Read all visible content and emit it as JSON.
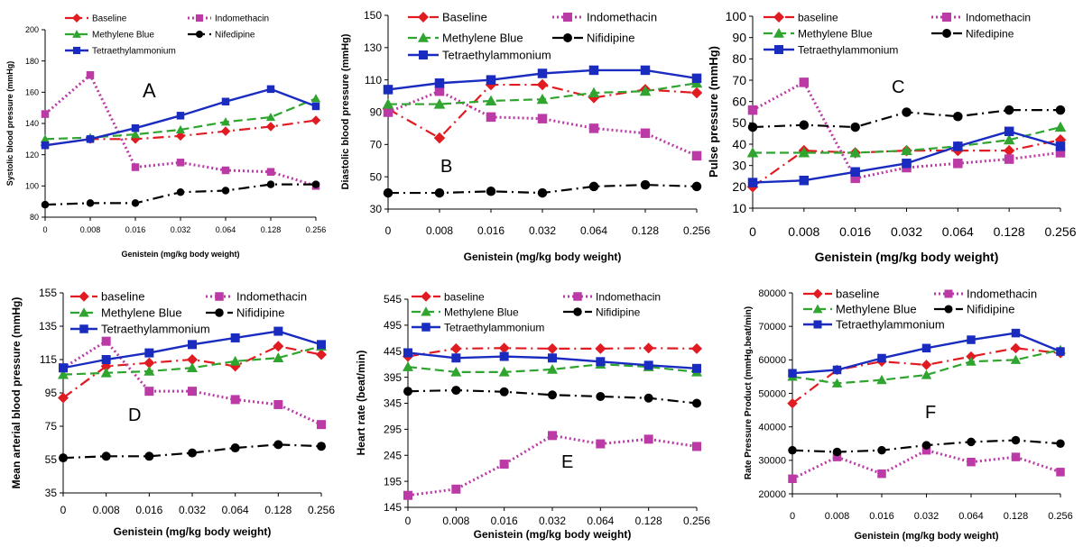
{
  "chart_data": [
    {
      "type": "line",
      "panel_letter": "A",
      "xlabel": "Genistein (mg/kg body weight)",
      "ylabel": "Systolic blood pressure (mmHg)",
      "categories": [
        "0",
        "0.008",
        "0.016",
        "0.032",
        "0.064",
        "0.128",
        "0.256"
      ],
      "ylim": [
        80,
        200
      ],
      "yticks": [
        80,
        100,
        120,
        140,
        160,
        180,
        200
      ],
      "grid": false,
      "legend_entries": [
        "Baseline",
        "Indomethacin",
        "Methylene Blue",
        "Nifedipine",
        "Tetraethylammonium"
      ],
      "series": [
        {
          "name": "Baseline",
          "values": [
            126,
            130,
            130,
            132,
            135,
            138,
            142
          ]
        },
        {
          "name": "Indomethacin",
          "values": [
            146,
            171,
            112,
            115,
            110,
            109,
            100
          ]
        },
        {
          "name": "Methylene Blue",
          "values": [
            130,
            131,
            133,
            136,
            141,
            144,
            156
          ]
        },
        {
          "name": "Nifedipine",
          "values": [
            88,
            89,
            89,
            96,
            97,
            101,
            101
          ]
        },
        {
          "name": "Tetraethylammonium",
          "values": [
            126,
            130,
            137,
            145,
            154,
            162,
            151
          ]
        }
      ]
    },
    {
      "type": "line",
      "panel_letter": "B",
      "xlabel": "Genistein (mg/kg body weight)",
      "ylabel": "Diastolic blood pressure (mmHg)",
      "categories": [
        "0",
        "0.008",
        "0.016",
        "0.032",
        "0.064",
        "0.128",
        "0.256"
      ],
      "ylim": [
        30,
        150
      ],
      "yticks": [
        30,
        50,
        70,
        90,
        110,
        130,
        150
      ],
      "grid": false,
      "legend_entries": [
        "Baseline",
        "Indomethacin",
        "Methylene Blue",
        "Nifidipine",
        "Tetraethylammonium"
      ],
      "series": [
        {
          "name": "Baseline",
          "values": [
            92,
            74,
            107,
            107,
            99,
            104,
            102
          ]
        },
        {
          "name": "Indomethacin",
          "values": [
            90,
            103,
            87,
            86,
            80,
            77,
            63
          ]
        },
        {
          "name": "Methylene Blue",
          "values": [
            95,
            95,
            97,
            98,
            102,
            103,
            108
          ]
        },
        {
          "name": "Nifidipine",
          "values": [
            40,
            40,
            41,
            40,
            44,
            45,
            44
          ]
        },
        {
          "name": "Tetraethylammonium",
          "values": [
            104,
            108,
            110,
            114,
            116,
            116,
            111
          ]
        }
      ]
    },
    {
      "type": "line",
      "panel_letter": "C",
      "xlabel": "Genistein (mg/kg body weight)",
      "ylabel": "Pulse pressure (mmHg)",
      "categories": [
        "0",
        "0.008",
        "0.016",
        "0.032",
        "0.064",
        "0.128",
        "0.256"
      ],
      "ylim": [
        10,
        100
      ],
      "yticks": [
        10,
        20,
        30,
        40,
        50,
        60,
        70,
        80,
        90,
        100
      ],
      "grid": false,
      "legend_entries": [
        "baseline",
        "Indomethacin",
        "Methylene Blue",
        "Nifedipine",
        "Tetraethylammonium"
      ],
      "series": [
        {
          "name": "baseline",
          "values": [
            20,
            37,
            36,
            37,
            37,
            37,
            42
          ]
        },
        {
          "name": "Indomethacin",
          "values": [
            56,
            69,
            24,
            29,
            31,
            33,
            36
          ]
        },
        {
          "name": "Methylene Blue",
          "values": [
            36,
            36,
            36,
            37,
            39,
            42,
            48
          ]
        },
        {
          "name": "Nifedipine",
          "values": [
            48,
            49,
            48,
            55,
            53,
            56,
            56
          ]
        },
        {
          "name": "Tetraethylammonium",
          "values": [
            22,
            23,
            27,
            31,
            39,
            46,
            39
          ]
        }
      ]
    },
    {
      "type": "line",
      "panel_letter": "D",
      "xlabel": "Genistein (mg/kg body weight)",
      "ylabel": "Mean arterial blood pressure (mmHg)",
      "categories": [
        "0",
        "0.008",
        "0.016",
        "0.032",
        "0.064",
        "0.128",
        "0.256"
      ],
      "ylim": [
        35,
        155
      ],
      "yticks": [
        35,
        55,
        75,
        95,
        115,
        135,
        155
      ],
      "grid": false,
      "legend_entries": [
        "baseline",
        "Indomethacin",
        "Methylene Blue",
        "Nifidipine",
        "Tetraethylammonium"
      ],
      "series": [
        {
          "name": "baseline",
          "values": [
            92,
            111,
            113,
            115,
            111,
            123,
            118
          ]
        },
        {
          "name": "Indomethacin",
          "values": [
            110,
            126,
            96,
            96,
            91,
            88,
            76
          ]
        },
        {
          "name": "Methylene Blue",
          "values": [
            106,
            107,
            108,
            110,
            114,
            116,
            123
          ]
        },
        {
          "name": "Nifidipine",
          "values": [
            56,
            57,
            57,
            59,
            62,
            64,
            63
          ]
        },
        {
          "name": "Tetraethylammonium",
          "values": [
            110,
            115,
            119,
            124,
            128,
            132,
            124
          ]
        }
      ]
    },
    {
      "type": "line",
      "panel_letter": "E",
      "xlabel": "Genistein (mg/kg body weight)",
      "ylabel": "Heart rate (beat/min)",
      "categories": [
        "0",
        "0.008",
        "0.016",
        "0.032",
        "0.064",
        "0.128",
        "0.256"
      ],
      "ylim": [
        145,
        545
      ],
      "yticks": [
        145,
        195,
        245,
        295,
        345,
        395,
        445,
        495,
        545
      ],
      "grid": false,
      "legend_entries": [
        "baseline",
        "Indomethacin",
        "Methylene Blue",
        "Nifidipine",
        "Tetraethylammonium"
      ],
      "series": [
        {
          "name": "baseline",
          "values": [
            435,
            450,
            451,
            450,
            450,
            451,
            450
          ]
        },
        {
          "name": "Indomethacin",
          "values": [
            168,
            180,
            228,
            283,
            267,
            276,
            262
          ]
        },
        {
          "name": "Methylene Blue",
          "values": [
            415,
            405,
            405,
            410,
            420,
            415,
            405
          ]
        },
        {
          "name": "Nifidipine",
          "values": [
            368,
            370,
            367,
            361,
            358,
            355,
            345
          ]
        },
        {
          "name": "Tetraethylammonium",
          "values": [
            442,
            432,
            435,
            432,
            425,
            418,
            412
          ]
        }
      ]
    },
    {
      "type": "line",
      "panel_letter": "F",
      "xlabel": "Genistein (mg/kg body weight)",
      "ylabel": "Rate Pressure Product (mmHg.beat/min)",
      "categories": [
        "0",
        "0.008",
        "0.016",
        "0.032",
        "0.064",
        "0.128",
        "0.256"
      ],
      "ylim": [
        20000,
        80000
      ],
      "yticks": [
        20000,
        30000,
        40000,
        50000,
        60000,
        70000,
        80000
      ],
      "grid": false,
      "legend_entries": [
        "baseline",
        "Indomethacin",
        "Methylene Blue",
        "Nifidipine",
        "Tetraethylammonium"
      ],
      "series": [
        {
          "name": "baseline",
          "values": [
            47000,
            57000,
            59500,
            58500,
            61000,
            63500,
            62000
          ]
        },
        {
          "name": "Indomethacin",
          "values": [
            24500,
            31000,
            26000,
            33000,
            29500,
            31000,
            26500
          ]
        },
        {
          "name": "Methylene Blue",
          "values": [
            55000,
            53000,
            54000,
            55500,
            59500,
            60000,
            63000
          ]
        },
        {
          "name": "Nifidipine",
          "values": [
            33000,
            32500,
            33000,
            34500,
            35500,
            36000,
            35000
          ]
        },
        {
          "name": "Tetraethylammonium",
          "values": [
            56000,
            57000,
            60500,
            63500,
            66000,
            68000,
            62500
          ]
        }
      ]
    }
  ],
  "style": {
    "colors": {
      "baseline": "#e11b22",
      "indomethacin": "#bb3aa5",
      "methylene": "#2fa52f",
      "nifedipine": "#000000",
      "tea": "#1a2cc0"
    },
    "marker_names": [
      "diamond",
      "square",
      "triangle",
      "circle",
      "square"
    ]
  }
}
